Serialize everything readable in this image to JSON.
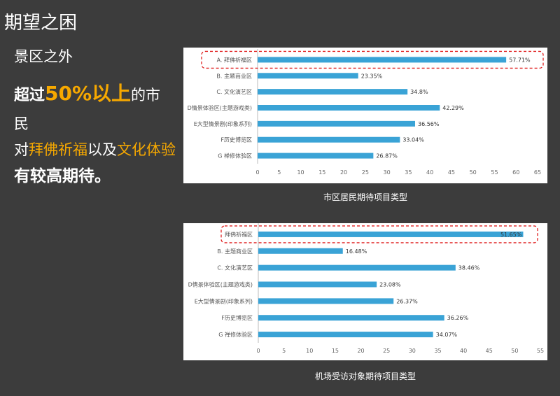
{
  "slide": {
    "title": "期望之困",
    "summary": {
      "line1": "景区之外",
      "line2_prefix": "超过",
      "line2_highlight": "50%以上",
      "line2_suffix": "的市",
      "line3": "民",
      "line4_prefix": "对",
      "line4_highlight1": "拜佛祈福",
      "line4_mid": "以及",
      "line4_highlight2": "文化体验",
      "line5": "有较高期待。"
    }
  },
  "chart_data": [
    {
      "type": "bar",
      "orientation": "horizontal",
      "title": "市区居民期待项目类型",
      "categories": [
        "A. 拜佛祈福区",
        "B. 主题商业区",
        "C. 文化演艺区",
        "D情景体验区(主题游戏类)",
        "E大型情景剧(印象系列)",
        "F历史博览区",
        "G 禅修体验区"
      ],
      "values": [
        57.71,
        23.35,
        34.8,
        42.29,
        36.56,
        33.04,
        26.87
      ],
      "value_labels": [
        "57.71%",
        "23.35%",
        "34.8%",
        "42.29%",
        "36.56%",
        "33.04%",
        "26.87%"
      ],
      "xlim": [
        0,
        65
      ],
      "xticks": [
        0,
        5,
        10,
        15,
        20,
        25,
        30,
        35,
        40,
        45,
        50,
        55,
        60,
        65
      ],
      "bar_color": "#3aa3d6",
      "highlight_color": "#e02020",
      "highlight_index": 0
    },
    {
      "type": "bar",
      "orientation": "horizontal",
      "title": "机场受访对象期待项目类型",
      "categories": [
        "拜佛祈福区",
        "B. 主题商业区",
        "C. 文化演艺区",
        "D情景体验区(主题游戏类)",
        "E大型情景剧(印象系列)",
        "F历史博览区",
        "G 禅修体验区"
      ],
      "values": [
        51.65,
        16.48,
        38.46,
        23.08,
        26.37,
        36.26,
        34.07
      ],
      "value_labels": [
        "51.65%",
        "16.48%",
        "38.46%",
        "23.08%",
        "26.37%",
        "36.26%",
        "34.07%"
      ],
      "xlim": [
        0,
        55
      ],
      "xticks": [
        0,
        5,
        10,
        15,
        20,
        25,
        30,
        35,
        40,
        45,
        50,
        55
      ],
      "bar_color": "#3aa3d6",
      "highlight_color": "#e02020",
      "highlight_index": 0
    }
  ]
}
